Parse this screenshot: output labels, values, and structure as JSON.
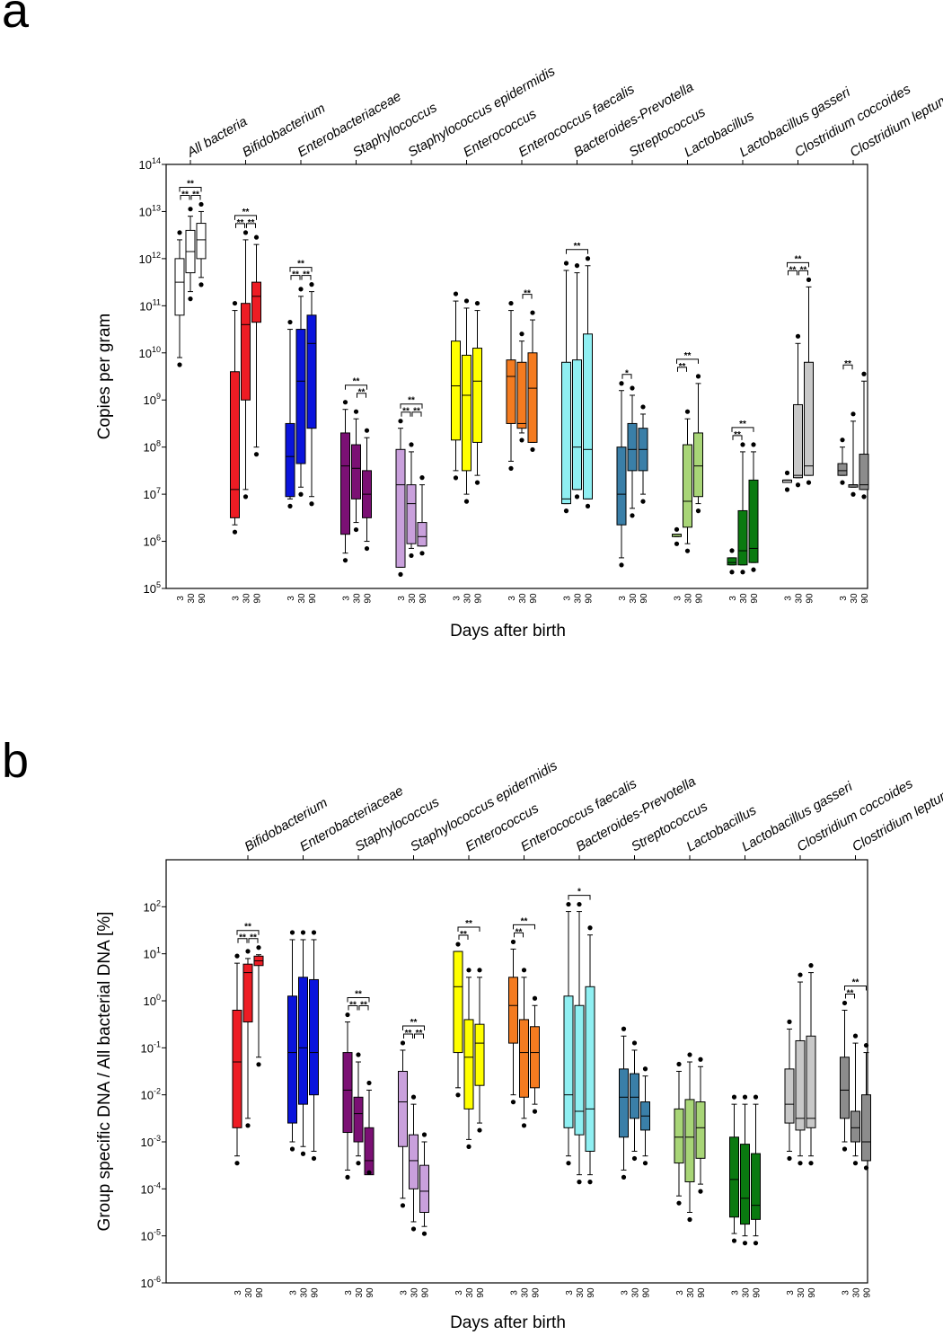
{
  "chart_data": [
    {
      "type": "boxplot",
      "panel_label": "a",
      "ylabel": "Copies per gram",
      "xlabel": "Days after birth",
      "yscale": "log10",
      "ylim_exp": [
        5,
        14
      ],
      "ytick_exps": [
        5,
        6,
        7,
        8,
        9,
        10,
        11,
        12,
        13,
        14
      ],
      "ytick_base": "10",
      "days": [
        "3",
        "30",
        "90"
      ],
      "groups": [
        {
          "name": "All bacteria",
          "color": "#ffffff",
          "sig": [
            {
              "a": 0,
              "b": 1,
              "t": "**"
            },
            {
              "a": 1,
              "b": 2,
              "t": "**"
            },
            {
              "a": 0,
              "b": 2,
              "t": "**"
            }
          ],
          "boxes": [
            [
              9.9,
              10.8,
              11.5,
              12.0,
              12.4
            ],
            [
              11.3,
              11.7,
              12.15,
              12.6,
              12.9
            ],
            [
              11.6,
              12.0,
              12.4,
              12.75,
              13.0
            ]
          ]
        },
        {
          "name": "Bifidobacterium",
          "color": "#ed1c24",
          "sig": [
            {
              "a": 0,
              "b": 1,
              "t": "**"
            },
            {
              "a": 1,
              "b": 2,
              "t": "**"
            },
            {
              "a": 0,
              "b": 2,
              "t": "**"
            }
          ],
          "boxes": [
            [
              6.35,
              6.5,
              7.1,
              9.6,
              10.9
            ],
            [
              7.1,
              9.0,
              10.6,
              11.05,
              12.4
            ],
            [
              8.0,
              10.65,
              11.2,
              11.5,
              12.3
            ]
          ]
        },
        {
          "name": "Enterobacteriaceae",
          "color": "#0a14dc",
          "sig": [
            {
              "a": 0,
              "b": 1,
              "t": "**"
            },
            {
              "a": 1,
              "b": 2,
              "t": "**"
            },
            {
              "a": 0,
              "b": 2,
              "t": "**"
            }
          ],
          "boxes": [
            [
              6.9,
              6.95,
              7.8,
              8.5,
              10.5
            ],
            [
              7.15,
              7.65,
              9.4,
              10.5,
              11.2
            ],
            [
              6.95,
              8.4,
              10.2,
              10.8,
              11.3
            ]
          ]
        },
        {
          "name": "Staphylococcus",
          "color": "#7b1074",
          "sig": [
            {
              "a": 0,
              "b": 2,
              "t": "**"
            },
            {
              "a": 1,
              "b": 2,
              "t": "**"
            }
          ],
          "boxes": [
            [
              5.75,
              6.15,
              7.6,
              8.3,
              8.8
            ],
            [
              6.4,
              6.9,
              7.55,
              8.05,
              8.6
            ],
            [
              6.0,
              6.5,
              7.0,
              7.5,
              8.2
            ]
          ]
        },
        {
          "name": "Staphylococcus epidermidis",
          "color": "#c9a0dc",
          "sig": [
            {
              "a": 0,
              "b": 1,
              "t": "**"
            },
            {
              "a": 1,
              "b": 2,
              "t": "**"
            },
            {
              "a": 0,
              "b": 2,
              "t": "**"
            }
          ],
          "boxes": [
            [
              5.45,
              5.45,
              7.2,
              7.95,
              8.4
            ],
            [
              5.85,
              5.95,
              6.8,
              7.2,
              7.9
            ],
            [
              5.9,
              5.9,
              6.1,
              6.4,
              7.2
            ]
          ]
        },
        {
          "name": "Enterococcus",
          "color": "#ffff00",
          "sig": [],
          "boxes": [
            [
              7.5,
              8.15,
              9.3,
              10.25,
              11.1
            ],
            [
              7.0,
              7.5,
              9.1,
              9.95,
              10.95
            ],
            [
              7.4,
              8.1,
              9.4,
              10.1,
              10.9
            ]
          ]
        },
        {
          "name": "Enterococcus faecalis",
          "color": "#f47b20",
          "sig": [
            {
              "a": 1,
              "b": 2,
              "t": "**"
            }
          ],
          "boxes": [
            [
              7.7,
              8.5,
              9.5,
              9.85,
              10.9
            ],
            [
              8.3,
              8.4,
              8.5,
              9.8,
              10.25
            ],
            [
              8.1,
              8.1,
              9.25,
              10.0,
              10.7
            ]
          ]
        },
        {
          "name": "Bacteroides-Prevotella",
          "color": "#8feff2",
          "sig": [
            {
              "a": 0,
              "b": 2,
              "t": "**"
            }
          ],
          "boxes": [
            [
              6.8,
              6.8,
              6.9,
              9.8,
              11.75
            ],
            [
              7.1,
              7.1,
              8.0,
              9.85,
              11.7
            ],
            [
              6.9,
              6.9,
              7.95,
              10.4,
              11.85
            ]
          ]
        },
        {
          "name": "Streptococcus",
          "color": "#3a7fa8",
          "sig": [
            {
              "a": 0,
              "b": 1,
              "t": "*"
            }
          ],
          "boxes": [
            [
              5.65,
              6.35,
              7.0,
              8.0,
              9.2
            ],
            [
              6.7,
              7.5,
              7.95,
              8.5,
              9.1
            ],
            [
              7.0,
              7.5,
              7.95,
              8.4,
              8.7
            ]
          ]
        },
        {
          "name": "Lactobacillus",
          "color": "#a8d577",
          "sig": [
            {
              "a": 0,
              "b": 1,
              "t": "**"
            },
            {
              "a": 0,
              "b": 2,
              "t": "**"
            }
          ],
          "boxes": [
            [
              6.1,
              6.1,
              6.15,
              6.15,
              6.1
            ],
            [
              5.95,
              6.3,
              6.85,
              8.05,
              8.6
            ],
            [
              6.8,
              6.95,
              7.6,
              8.3,
              9.35
            ]
          ]
        },
        {
          "name": "Lactobacillus gasseri",
          "color": "#0a7a10",
          "sig": [
            {
              "a": 0,
              "b": 1,
              "t": "**"
            },
            {
              "a": 0,
              "b": 2,
              "t": "**"
            }
          ],
          "boxes": [
            [
              5.5,
              5.5,
              5.55,
              5.65,
              5.65
            ],
            [
              5.5,
              5.5,
              5.8,
              6.65,
              7.9
            ],
            [
              5.55,
              5.55,
              5.85,
              7.3,
              7.9
            ]
          ]
        },
        {
          "name": "Clostridium coccoides",
          "color": "#c8c8c8",
          "sig": [
            {
              "a": 0,
              "b": 1,
              "t": "**"
            },
            {
              "a": 1,
              "b": 2,
              "t": "**"
            },
            {
              "a": 0,
              "b": 2,
              "t": "**"
            }
          ],
          "boxes": [
            [
              7.25,
              7.25,
              7.3,
              7.3,
              7.3
            ],
            [
              7.35,
              7.35,
              7.4,
              8.9,
              10.2
            ],
            [
              7.4,
              7.4,
              7.6,
              9.8,
              11.4
            ]
          ]
        },
        {
          "name": "Clostridium leptum",
          "color": "#8c8c8c",
          "sig": [
            {
              "a": 0,
              "b": 1,
              "t": "**"
            }
          ],
          "boxes": [
            [
              7.4,
              7.4,
              7.5,
              7.65,
              8.0
            ],
            [
              7.15,
              7.15,
              7.2,
              7.2,
              8.55
            ],
            [
              7.1,
              7.1,
              7.2,
              7.85,
              9.4
            ]
          ]
        }
      ]
    },
    {
      "type": "boxplot",
      "panel_label": "b",
      "ylabel": "Group specific DNA / All bacterial DNA [%]",
      "xlabel": "Days after birth",
      "yscale": "log10",
      "ylim_exp": [
        -6,
        3
      ],
      "ytick_exps": [
        -6,
        -5,
        -4,
        -3,
        -2,
        -1,
        0,
        1,
        2
      ],
      "ytick_text": [
        "10-6",
        "10-5",
        "10-4",
        "10-3",
        "10-2",
        "10-1",
        "100",
        "101",
        "102"
      ],
      "ytick_base": "10",
      "days": [
        "3",
        "30",
        "90"
      ],
      "groups": [
        {
          "name": "Bifidobacterium",
          "color": "#ed1c24",
          "sig": [
            {
              "a": 0,
              "b": 1,
              "t": "**"
            },
            {
              "a": 1,
              "b": 2,
              "t": "**"
            },
            {
              "a": 0,
              "b": 2,
              "t": "**"
            }
          ],
          "boxes": [
            [
              -3.3,
              -2.7,
              -1.3,
              -0.2,
              0.8
            ],
            [
              -2.5,
              -0.45,
              0.6,
              0.78,
              0.9
            ],
            [
              -1.2,
              0.75,
              0.85,
              0.95,
              0.98
            ]
          ]
        },
        {
          "name": "Enterobacteriaceae",
          "color": "#0a14dc",
          "sig": [],
          "boxes": [
            [
              -3.0,
              -2.6,
              -1.1,
              0.1,
              1.3
            ],
            [
              -3.1,
              -2.2,
              -1.0,
              0.5,
              1.3
            ],
            [
              -3.2,
              -2.0,
              -1.1,
              0.45,
              1.3
            ]
          ]
        },
        {
          "name": "Staphylococcus",
          "color": "#7b1074",
          "sig": [
            {
              "a": 0,
              "b": 1,
              "t": "**"
            },
            {
              "a": 1,
              "b": 2,
              "t": "**"
            },
            {
              "a": 0,
              "b": 2,
              "t": "**"
            }
          ],
          "boxes": [
            [
              -3.6,
              -2.8,
              -1.9,
              -1.1,
              -0.45
            ],
            [
              -3.3,
              -3.0,
              -2.4,
              -2.05,
              -1.3
            ],
            [
              -3.5,
              -3.7,
              -3.4,
              -2.7,
              -1.9
            ]
          ]
        },
        {
          "name": "Staphylococcus epidermidis",
          "color": "#c9a0dc",
          "sig": [
            {
              "a": 0,
              "b": 1,
              "t": "**"
            },
            {
              "a": 1,
              "b": 2,
              "t": "**"
            },
            {
              "a": 0,
              "b": 2,
              "t": "**"
            }
          ],
          "boxes": [
            [
              -4.2,
              -3.1,
              -2.15,
              -1.5,
              -1.05
            ],
            [
              -4.7,
              -4.0,
              -3.4,
              -2.85,
              -2.2
            ],
            [
              -4.8,
              -4.5,
              -4.05,
              -3.5,
              -3.0
            ]
          ]
        },
        {
          "name": "Enterococcus",
          "color": "#ffff00",
          "sig": [
            {
              "a": 0,
              "b": 1,
              "t": "**"
            },
            {
              "a": 0,
              "b": 2,
              "t": "**"
            }
          ],
          "boxes": [
            [
              -1.85,
              -1.1,
              0.3,
              1.05,
              1.05
            ],
            [
              -2.95,
              -2.3,
              -1.2,
              -0.4,
              0.5
            ],
            [
              -2.6,
              -1.8,
              -0.9,
              -0.5,
              0.5
            ]
          ]
        },
        {
          "name": "Enterococcus faecalis",
          "color": "#f47b20",
          "sig": [
            {
              "a": 0,
              "b": 1,
              "t": "**"
            },
            {
              "a": 0,
              "b": 2,
              "t": "**"
            }
          ],
          "boxes": [
            [
              -2.0,
              -0.9,
              -0.1,
              0.5,
              1.1
            ],
            [
              -2.5,
              -2.05,
              -1.1,
              -0.4,
              0.5
            ],
            [
              -2.2,
              -1.85,
              -1.1,
              -0.55,
              -0.1
            ]
          ]
        },
        {
          "name": "Bacteroides-Prevotella",
          "color": "#8feff2",
          "sig": [
            {
              "a": 0,
              "b": 2,
              "t": "*"
            }
          ],
          "boxes": [
            [
              -3.3,
              -2.7,
              -2.0,
              0.1,
              1.9
            ],
            [
              -3.7,
              -2.85,
              -2.35,
              -0.1,
              1.9
            ],
            [
              -3.7,
              -3.2,
              -2.3,
              0.3,
              1.4
            ]
          ]
        },
        {
          "name": "Streptococcus",
          "color": "#3a7fa8",
          "sig": [],
          "boxes": [
            [
              -3.6,
              -2.9,
              -2.05,
              -1.45,
              -0.75
            ],
            [
              -3.2,
              -2.5,
              -2.05,
              -1.55,
              -1.05
            ],
            [
              -3.3,
              -2.75,
              -2.45,
              -2.15,
              -1.6
            ]
          ]
        },
        {
          "name": "Lactobacillus",
          "color": "#a8d577",
          "sig": [],
          "boxes": [
            [
              -4.15,
              -3.45,
              -2.9,
              -2.3,
              -1.5
            ],
            [
              -4.5,
              -3.85,
              -2.9,
              -2.1,
              -1.3
            ],
            [
              -3.9,
              -3.35,
              -2.7,
              -2.15,
              -1.4
            ]
          ]
        },
        {
          "name": "Lactobacillus gasseri",
          "color": "#0a7a10",
          "sig": [],
          "boxes": [
            [
              -4.95,
              -4.6,
              -3.8,
              -2.9,
              -2.2
            ],
            [
              -5.0,
              -4.75,
              -4.2,
              -3.05,
              -2.2
            ],
            [
              -5.0,
              -4.65,
              -4.35,
              -3.25,
              -2.2
            ]
          ]
        },
        {
          "name": "Clostridium coccoides",
          "color": "#c8c8c8",
          "sig": [],
          "boxes": [
            [
              -3.2,
              -2.6,
              -2.2,
              -1.45,
              -0.6
            ],
            [
              -3.3,
              -2.75,
              -2.5,
              -0.85,
              0.4
            ],
            [
              -3.3,
              -2.7,
              -2.5,
              -0.75,
              0.6
            ]
          ]
        },
        {
          "name": "Clostridium leptum",
          "color": "#8c8c8c",
          "sig": [
            {
              "a": 0,
              "b": 1,
              "t": "**"
            },
            {
              "a": 0,
              "b": 2,
              "t": "**"
            }
          ],
          "boxes": [
            [
              -3.0,
              -2.5,
              -1.9,
              -1.2,
              -0.2
            ],
            [
              -3.3,
              -3.0,
              -2.7,
              -2.35,
              -0.9
            ],
            [
              -3.4,
              -3.4,
              -3.0,
              -2.0,
              -1.1
            ]
          ]
        }
      ]
    }
  ]
}
